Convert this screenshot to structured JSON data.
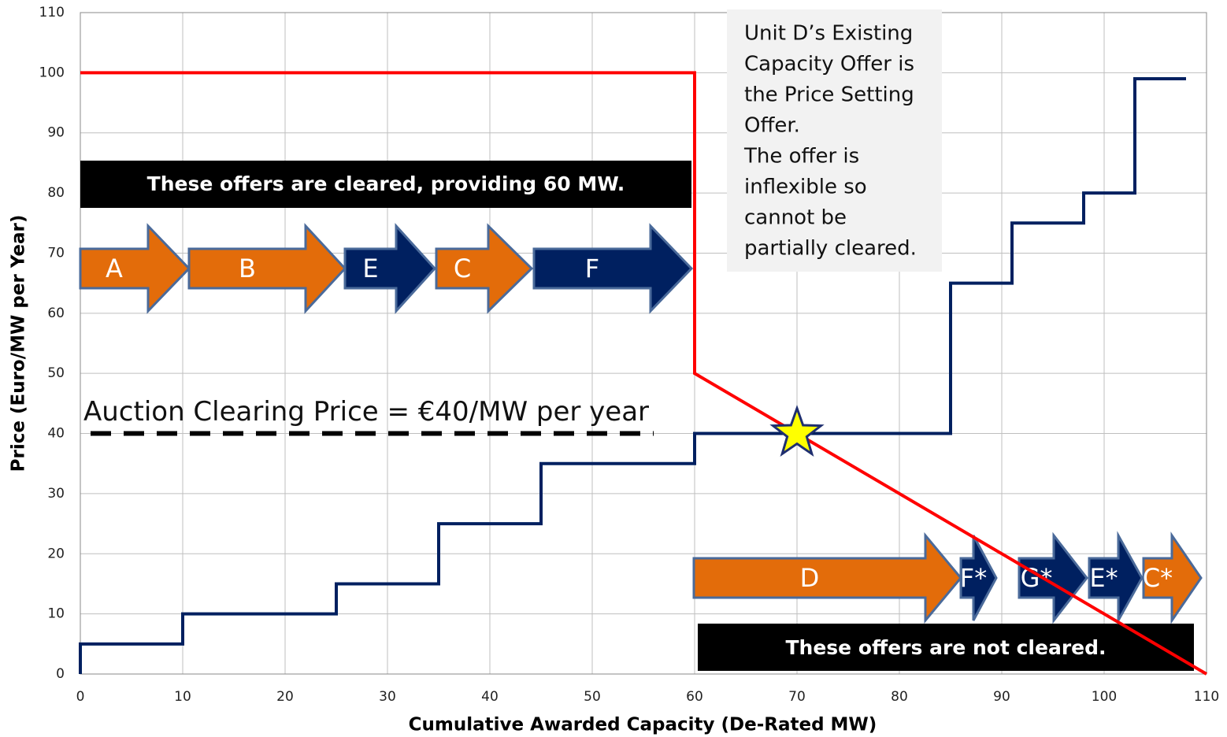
{
  "chart_data": {
    "type": "line",
    "x_label": "Cumulative Awarded Capacity (De-Rated MW)",
    "y_label": "Price (Euro/MW per Year)",
    "xlim": [
      0,
      110
    ],
    "xticks": [
      0,
      10,
      20,
      30,
      40,
      50,
      60,
      70,
      80,
      90,
      100,
      110
    ],
    "ylim": [
      0,
      110
    ],
    "yticks": [
      0,
      10,
      20,
      30,
      40,
      50,
      60,
      70,
      80,
      90,
      100,
      110
    ],
    "grid": true,
    "series": [
      {
        "color": "#002060",
        "x": [
          0,
          0,
          10,
          10,
          25,
          25,
          35,
          35,
          45,
          45,
          60,
          60,
          85,
          85,
          91,
          91,
          98,
          98,
          103,
          103,
          108
        ],
        "values": [
          0,
          5,
          5,
          10,
          10,
          15,
          15,
          25,
          25,
          35,
          35,
          40,
          40,
          65,
          65,
          75,
          75,
          80,
          80,
          99,
          99
        ]
      },
      {
        "color": "#ff0000",
        "x": [
          0,
          60,
          60,
          110
        ],
        "values": [
          100,
          100,
          50,
          0
        ]
      }
    ],
    "clearing_price": {
      "value": 40,
      "label": "Auction Clearing Price = €40/MW per year"
    },
    "star": {
      "x": 70,
      "y": 40,
      "color": "#ffff00"
    },
    "note": [
      "Unit D’s Existing",
      "Capacity Offer is",
      "the Price Setting",
      "Offer.",
      "The offer is",
      "inflexible so",
      "cannot be",
      "partially cleared."
    ],
    "cleared_label": "These offers are cleared, providing 60 MW.",
    "not_cleared_label": "These offers are not cleared.",
    "arrows": [
      {
        "label": "A",
        "color": "#e36c0a"
      },
      {
        "label": "B",
        "color": "#e36c0a"
      },
      {
        "label": "E",
        "color": "#002060"
      },
      {
        "label": "C",
        "color": "#e36c0a"
      },
      {
        "label": "F",
        "color": "#002060"
      },
      {
        "label": "D",
        "color": "#e36c0a"
      },
      {
        "label": "F*",
        "color": "#002060"
      },
      {
        "label": "G*",
        "color": "#002060"
      },
      {
        "label": "E*",
        "color": "#002060"
      },
      {
        "label": "C*",
        "color": "#e36c0a"
      }
    ]
  }
}
